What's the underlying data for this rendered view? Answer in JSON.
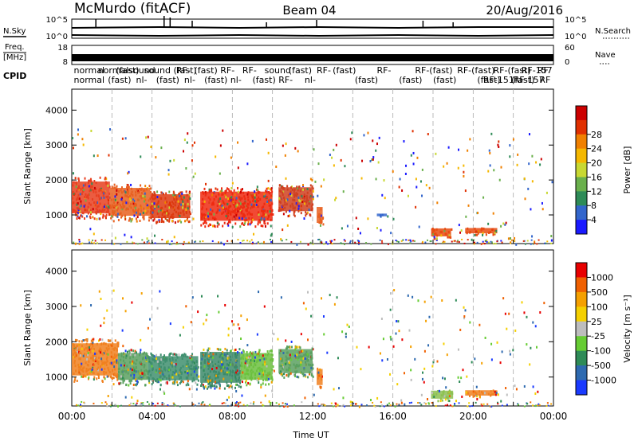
{
  "header": {
    "radar": "McMurdo (fitACF)",
    "beam": "Beam 04",
    "date": "20/Aug/2016"
  },
  "params": {
    "nsky_label": "N.Sky",
    "nsearch_label": "N.Search",
    "freq_label": "Freq.",
    "freq_unit": "[MHz]",
    "nave_label": "Nave",
    "cpid_label": "CPID",
    "nsky_ticks": [
      "10^5",
      "10^0"
    ],
    "nsearch_ticks": [
      "10^5",
      "10^0"
    ],
    "freq_ticks": [
      "18",
      "8"
    ],
    "nave_ticks": [
      "60",
      "0"
    ],
    "cpid_entries": [
      {
        "t": 0.1,
        "row": 0,
        "text": "normal"
      },
      {
        "t": 0.1,
        "row": 1,
        "text": "normal"
      },
      {
        "t": 1.3,
        "row": 0,
        "text": "normalsound"
      },
      {
        "t": 1.8,
        "row": 1,
        "text": "(fast)"
      },
      {
        "t": 2.2,
        "row": 0,
        "text": "(fast)"
      },
      {
        "t": 3.2,
        "row": 1,
        "text": "nl-"
      },
      {
        "t": 3.6,
        "row": 0,
        "text": "sound (fast)"
      },
      {
        "t": 4.2,
        "row": 1,
        "text": "(fast)"
      },
      {
        "t": 5.2,
        "row": 0,
        "text": "RF-"
      },
      {
        "t": 5.6,
        "row": 1,
        "text": "nl-"
      },
      {
        "t": 6.1,
        "row": 0,
        "text": "(fast)"
      },
      {
        "t": 6.6,
        "row": 1,
        "text": "(fast)"
      },
      {
        "t": 7.4,
        "row": 0,
        "text": "RF-"
      },
      {
        "t": 7.9,
        "row": 1,
        "text": "nl-"
      },
      {
        "t": 8.5,
        "row": 0,
        "text": "RF-"
      },
      {
        "t": 9.0,
        "row": 1,
        "text": "(fast)"
      },
      {
        "t": 9.6,
        "row": 0,
        "text": "sound"
      },
      {
        "t": 10.3,
        "row": 1,
        "text": "RF-"
      },
      {
        "t": 10.8,
        "row": 0,
        "text": "(fast)"
      },
      {
        "t": 11.6,
        "row": 1,
        "text": "nl-"
      },
      {
        "t": 12.2,
        "row": 0,
        "text": "RF-"
      },
      {
        "t": 13.0,
        "row": 0,
        "text": "(fast)"
      },
      {
        "t": 14.1,
        "row": 1,
        "text": "(fast)"
      },
      {
        "t": 15.2,
        "row": 0,
        "text": "RF-"
      },
      {
        "t": 16.3,
        "row": 1,
        "text": "(fast)"
      },
      {
        "t": 17.1,
        "row": 0,
        "text": "RF-(fast)"
      },
      {
        "t": 18.0,
        "row": 1,
        "text": "(fast)"
      },
      {
        "t": 19.2,
        "row": 0,
        "text": "RF-(fast)"
      },
      {
        "t": 20.2,
        "row": 1,
        "text": "(fast)"
      },
      {
        "t": 21.0,
        "row": 0,
        "text": "RF-(fast)"
      },
      {
        "t": 21.9,
        "row": 1,
        "text": "(fast)"
      },
      {
        "t": 22.4,
        "row": 0,
        "text": "RF-157"
      },
      {
        "t": 23.2,
        "row": 0,
        "text": "RF"
      },
      {
        "t": 22.0,
        "row": 1,
        "text": "RF-157"
      },
      {
        "t": 23.3,
        "row": 1,
        "text": "RF"
      },
      {
        "t": 20.5,
        "row": 1,
        "text": "RF-151"
      }
    ]
  },
  "chart_data": [
    {
      "type": "heatmap",
      "name": "power",
      "xlabel": "",
      "ylabel": "Slant Range [km]",
      "xlim": [
        0,
        24
      ],
      "ylim": [
        180,
        4600
      ],
      "yticks": [
        1000,
        2000,
        3000,
        4000
      ],
      "xtick_hours": [
        0,
        2,
        4,
        6,
        8,
        10,
        12,
        14,
        16,
        18,
        20,
        22,
        24
      ],
      "colorbar": {
        "label": "Power [dB]",
        "ticks": [
          "4",
          "8",
          "12",
          "16",
          "20",
          "24",
          "28"
        ],
        "colors": [
          "#1a1aff",
          "#3366cc",
          "#2e8b57",
          "#6ab04c",
          "#c8d832",
          "#f5b800",
          "#f08000",
          "#e03000",
          "#cc0000"
        ]
      },
      "blobs": [
        {
          "t0": 0.0,
          "t1": 1.9,
          "r0": 900,
          "r1": 2100,
          "color": "#e84020"
        },
        {
          "t0": 1.9,
          "t1": 3.9,
          "r0": 850,
          "r1": 1900,
          "color": "#e86020"
        },
        {
          "t0": 3.9,
          "t1": 5.9,
          "r0": 800,
          "r1": 1700,
          "color": "#dd3a10"
        },
        {
          "t0": 6.4,
          "t1": 10.0,
          "r0": 700,
          "r1": 1800,
          "color": "#ee2a10"
        },
        {
          "t0": 10.3,
          "t1": 12.0,
          "r0": 1000,
          "r1": 1900,
          "color": "#d04020"
        },
        {
          "t0": 12.2,
          "t1": 12.5,
          "r0": 700,
          "r1": 1300,
          "color": "#e86020"
        },
        {
          "t0": 17.9,
          "t1": 18.9,
          "r0": 350,
          "r1": 650,
          "color": "#e84a10"
        },
        {
          "t0": 19.6,
          "t1": 21.2,
          "r0": 450,
          "r1": 650,
          "color": "#e84a10"
        },
        {
          "t0": 15.2,
          "t1": 15.7,
          "r0": 950,
          "r1": 1050,
          "color": "#3366cc"
        }
      ]
    },
    {
      "type": "heatmap",
      "name": "velocity",
      "xlabel": "Time UT",
      "ylabel": "Slant Range [km]",
      "xlim": [
        0,
        24
      ],
      "ylim": [
        180,
        4600
      ],
      "yticks": [
        1000,
        2000,
        3000,
        4000
      ],
      "xtick_labels": [
        "00:00",
        "04:00",
        "08:00",
        "12:00",
        "16:00",
        "20:00",
        "00:00"
      ],
      "xtick_label_hours": [
        0,
        4,
        8,
        12,
        16,
        20,
        24
      ],
      "colorbar": {
        "label": "Velocity [m s⁻¹]",
        "ticks": [
          "1000",
          "500",
          "100",
          "25",
          "-25",
          "-100",
          "-500",
          "-1000"
        ],
        "colors": [
          "#1a3aff",
          "#2e6ab0",
          "#2e8b57",
          "#66cc33",
          "#bdbdbd",
          "#f5d000",
          "#f5a000",
          "#f06000",
          "#e80000"
        ]
      },
      "blobs": [
        {
          "t0": 0.0,
          "t1": 2.3,
          "r0": 900,
          "r1": 2100,
          "color": "#f08020"
        },
        {
          "t0": 2.3,
          "t1": 3.8,
          "r0": 800,
          "r1": 1800,
          "color": "#5aa060"
        },
        {
          "t0": 3.8,
          "t1": 6.3,
          "r0": 800,
          "r1": 1700,
          "color": "#3f8f6f"
        },
        {
          "t0": 6.4,
          "t1": 8.4,
          "r0": 700,
          "r1": 1850,
          "color": "#3c8a6a"
        },
        {
          "t0": 8.4,
          "t1": 10.0,
          "r0": 800,
          "r1": 1800,
          "color": "#6cc040"
        },
        {
          "t0": 10.3,
          "t1": 12.0,
          "r0": 1000,
          "r1": 1900,
          "color": "#5aa060"
        },
        {
          "t0": 12.2,
          "t1": 12.5,
          "r0": 700,
          "r1": 1300,
          "color": "#f08020"
        },
        {
          "t0": 17.9,
          "t1": 19.0,
          "r0": 350,
          "r1": 650,
          "color": "#8cc050"
        },
        {
          "t0": 19.6,
          "t1": 21.2,
          "r0": 450,
          "r1": 650,
          "color": "#f08020"
        }
      ]
    }
  ]
}
